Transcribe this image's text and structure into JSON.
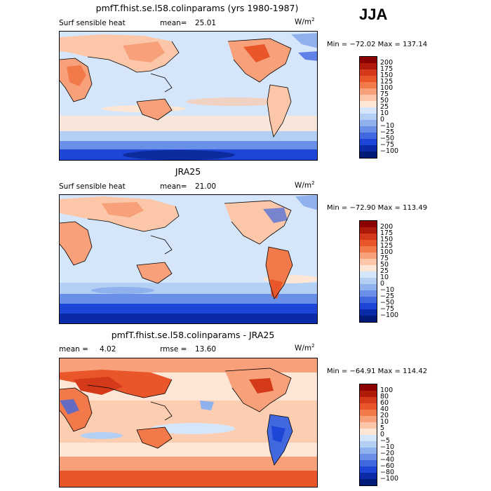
{
  "season": "JJA",
  "panels": [
    {
      "id": "model",
      "title": "pmfT.fhist.se.l58.colinparams (yrs 1980-1987)",
      "left_label": "Surf sensible heat",
      "stat_label": "mean=",
      "stat_value": "25.01",
      "units_base": "W/m",
      "units_exp": "2",
      "minmax": "Min = −72.02  Max = 137.14",
      "levels": [
        "200",
        "175",
        "150",
        "125",
        "100",
        "75",
        "50",
        "25",
        "10",
        "0",
        "−10",
        "−25",
        "−50",
        "−75",
        "−100"
      ],
      "colors": [
        "#8b0000",
        "#b01a0a",
        "#d43a1a",
        "#e8562a",
        "#f27a4a",
        "#f8a07a",
        "#fcc7a8",
        "#fde6d6",
        "#d6e6fa",
        "#b4cff4",
        "#8fb1ee",
        "#6a8fe8",
        "#4268e0",
        "#1e46d6",
        "#0b2aa8",
        "#001a78"
      ]
    },
    {
      "id": "obs",
      "title": "JRA25",
      "left_label": "Surf sensible heat",
      "stat_label": "mean=",
      "stat_value": "21.00",
      "units_base": "W/m",
      "units_exp": "2",
      "minmax": "Min = −72.90  Max = 113.49",
      "levels": [
        "200",
        "175",
        "150",
        "125",
        "100",
        "75",
        "50",
        "25",
        "10",
        "0",
        "−10",
        "−25",
        "−50",
        "−75",
        "−100"
      ],
      "colors": [
        "#8b0000",
        "#b01a0a",
        "#d43a1a",
        "#e8562a",
        "#f27a4a",
        "#f8a07a",
        "#fcc7a8",
        "#fde6d6",
        "#d6e6fa",
        "#b4cff4",
        "#8fb1ee",
        "#6a8fe8",
        "#4268e0",
        "#1e46d6",
        "#0b2aa8",
        "#001a78"
      ]
    },
    {
      "id": "diff",
      "title": "pmfT.fhist.se.l58.colinparams - JRA25",
      "left_label": "mean =",
      "left_value": "4.02",
      "stat_label": "rmse =",
      "stat_value": "13.60",
      "units_base": "W/m",
      "units_exp": "2",
      "minmax": "Min = −64.91  Max = 114.42",
      "levels": [
        "100",
        "80",
        "60",
        "40",
        "20",
        "10",
        "5",
        "0",
        "−5",
        "−10",
        "−20",
        "−40",
        "−60",
        "−80",
        "−100"
      ],
      "colors": [
        "#8b0000",
        "#b01a0a",
        "#d43a1a",
        "#e8562a",
        "#f27a4a",
        "#f8a07a",
        "#fcc7a8",
        "#fde6d6",
        "#d6e6fa",
        "#b4cff4",
        "#8fb1ee",
        "#6a8fe8",
        "#4268e0",
        "#1e46d6",
        "#0b2aa8",
        "#001a78"
      ]
    }
  ]
}
